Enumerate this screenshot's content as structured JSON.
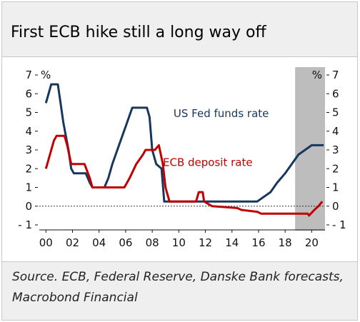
{
  "title": "First ECB hike still a long way off",
  "source": "Source. ECB, Federal Reserve, Danske Bank forecasts, Macrobond Financial",
  "colors": {
    "fed": "#17375e",
    "ecb": "#c00000",
    "forecast_shade": "#bdbdbd",
    "zero_line": "#333333"
  },
  "chart_data": {
    "type": "line",
    "y_unit_left": "%",
    "y_unit_right": "%",
    "ylim": [
      -1,
      7
    ],
    "yticks": [
      "- 1",
      "0",
      "1",
      "2",
      "3",
      "4",
      "5",
      "6",
      "7"
    ],
    "yticks_right": [
      "- 1",
      "0",
      "1",
      "2",
      "3",
      "4",
      "5",
      "6",
      "7"
    ],
    "xlim": [
      1999.5,
      2021.0
    ],
    "xticks": [
      "00",
      "02",
      "04",
      "06",
      "08",
      "10",
      "12",
      "14",
      "16",
      "18",
      "20"
    ],
    "xticks_year": [
      2000,
      2002,
      2004,
      2006,
      2008,
      2010,
      2012,
      2014,
      2016,
      2018,
      2020
    ],
    "forecast_region": [
      2018.75,
      2021.0
    ],
    "zero_line_style": "dashed",
    "series": [
      {
        "name": "US Fed funds rate",
        "label": "US Fed funds rate",
        "color_key": "fed",
        "points": [
          [
            2000.0,
            5.5
          ],
          [
            2000.2,
            6.0
          ],
          [
            2000.4,
            6.5
          ],
          [
            2000.9,
            6.5
          ],
          [
            2001.1,
            5.5
          ],
          [
            2001.3,
            4.5
          ],
          [
            2001.5,
            3.75
          ],
          [
            2001.7,
            3.0
          ],
          [
            2001.9,
            2.0
          ],
          [
            2002.1,
            1.75
          ],
          [
            2003.0,
            1.75
          ],
          [
            2003.3,
            1.25
          ],
          [
            2003.5,
            1.0
          ],
          [
            2004.4,
            1.0
          ],
          [
            2004.7,
            1.5
          ],
          [
            2005.0,
            2.25
          ],
          [
            2005.5,
            3.25
          ],
          [
            2006.0,
            4.25
          ],
          [
            2006.5,
            5.25
          ],
          [
            2007.6,
            5.25
          ],
          [
            2007.8,
            4.75
          ],
          [
            2008.0,
            3.0
          ],
          [
            2008.3,
            2.25
          ],
          [
            2008.7,
            2.0
          ],
          [
            2008.9,
            0.25
          ],
          [
            2015.9,
            0.25
          ],
          [
            2016.9,
            0.75
          ],
          [
            2017.4,
            1.25
          ],
          [
            2018.0,
            1.75
          ],
          [
            2018.5,
            2.25
          ],
          [
            2019.0,
            2.75
          ],
          [
            2019.5,
            3.0
          ],
          [
            2020.0,
            3.25
          ],
          [
            2020.9,
            3.25
          ]
        ]
      },
      {
        "name": "ECB deposit rate",
        "label": "ECB deposit rate",
        "color_key": "ecb",
        "points": [
          [
            2000.0,
            2.0
          ],
          [
            2000.3,
            2.75
          ],
          [
            2000.6,
            3.5
          ],
          [
            2000.8,
            3.75
          ],
          [
            2001.4,
            3.75
          ],
          [
            2001.6,
            3.25
          ],
          [
            2001.9,
            2.25
          ],
          [
            2002.9,
            2.25
          ],
          [
            2003.3,
            1.5
          ],
          [
            2003.5,
            1.0
          ],
          [
            2005.9,
            1.0
          ],
          [
            2006.3,
            1.5
          ],
          [
            2006.8,
            2.25
          ],
          [
            2007.3,
            2.75
          ],
          [
            2007.5,
            3.0
          ],
          [
            2008.2,
            3.0
          ],
          [
            2008.5,
            3.25
          ],
          [
            2008.8,
            2.25
          ],
          [
            2009.0,
            1.0
          ],
          [
            2009.3,
            0.25
          ],
          [
            2011.3,
            0.25
          ],
          [
            2011.5,
            0.75
          ],
          [
            2011.8,
            0.75
          ],
          [
            2011.9,
            0.25
          ],
          [
            2012.5,
            0.0
          ],
          [
            2014.4,
            -0.1
          ],
          [
            2014.7,
            -0.2
          ],
          [
            2015.9,
            -0.3
          ],
          [
            2016.2,
            -0.4
          ],
          [
            2019.7,
            -0.4
          ],
          [
            2019.8,
            -0.5
          ],
          [
            2020.2,
            -0.2
          ],
          [
            2020.5,
            0.0
          ],
          [
            2020.8,
            0.25
          ]
        ]
      }
    ]
  }
}
